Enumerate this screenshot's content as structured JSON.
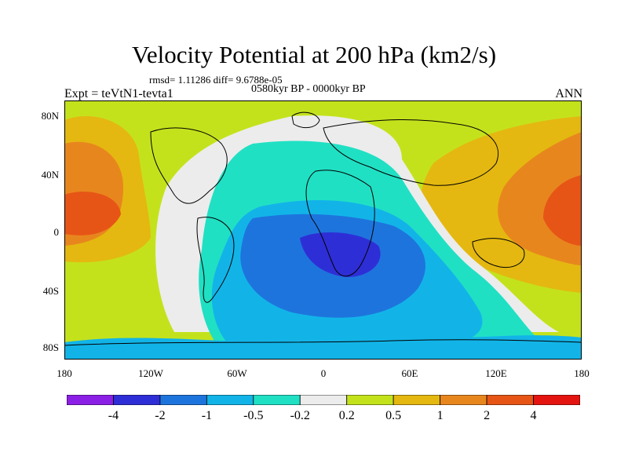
{
  "title": "Velocity Potential at 200 hPa (km2/s)",
  "stats": "rmsd= 1.11286 diff= 9.6788e-05",
  "period": "0580kyr BP - 0000kyr BP",
  "experiment": "Expt = teVtN1-tevta1",
  "season": "ANN",
  "axes": {
    "y_labels": [
      "80N",
      "40N",
      "0",
      "40S",
      "80S"
    ],
    "x_labels": [
      "180",
      "120W",
      "60W",
      "0",
      "60E",
      "120E",
      "180"
    ]
  },
  "colorbar": {
    "labels": [
      "-4",
      "-2",
      "-1",
      "-0.5",
      "-0.2",
      "0.2",
      "0.5",
      "1",
      "2",
      "4"
    ],
    "colors": [
      "#8c1fe6",
      "#2e2ed6",
      "#1e74dd",
      "#12b4e8",
      "#20e0c4",
      "#ececec",
      "#c4e21c",
      "#e4b810",
      "#e8861e",
      "#e65516",
      "#e41410"
    ]
  }
}
